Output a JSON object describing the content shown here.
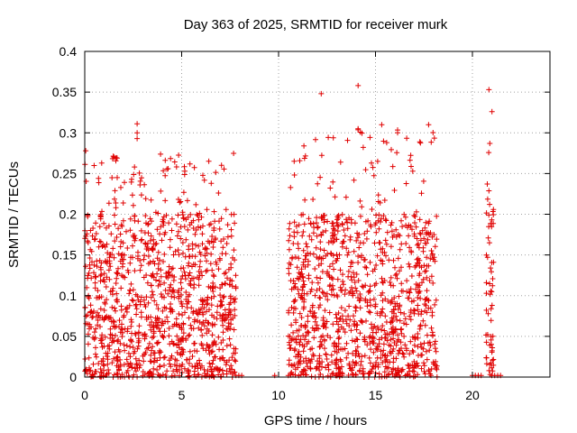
{
  "chart_data": {
    "type": "scatter",
    "title": "Day 363 of 2025, SRMTID for receiver murk",
    "xlabel": "GPS time / hours",
    "ylabel": "SRMTID / TECUs",
    "xlim": [
      0,
      24
    ],
    "ylim": [
      0,
      0.4
    ],
    "xticks": [
      0,
      5,
      10,
      15,
      20
    ],
    "xtick_labels": [
      "0",
      "5",
      "10",
      "15",
      "20"
    ],
    "yticks": [
      0,
      0.05,
      0.1,
      0.15,
      0.2,
      0.25,
      0.3,
      0.35,
      0.4
    ],
    "ytick_labels": [
      "0",
      "0.05",
      "0.1",
      "0.15",
      "0.2",
      "0.25",
      "0.3",
      "0.35",
      "0.4"
    ],
    "grid": true,
    "marker": "+",
    "series_color": "#e00000",
    "series": [
      {
        "name": "SRMTID",
        "clusters": [
          {
            "x_start": 0.0,
            "x_end": 7.8,
            "count": 1150,
            "y_typical_max": 0.2,
            "y_peak": 0.31
          },
          {
            "x_start": 10.5,
            "x_end": 18.2,
            "count": 1100,
            "y_typical_max": 0.2,
            "y_peak": 0.36
          },
          {
            "x_start": 20.7,
            "x_end": 21.1,
            "count": 60,
            "y_typical_max": 0.29,
            "y_peak": 0.353
          }
        ],
        "highlight_points": [
          {
            "x": 0.05,
            "y": 0.278
          },
          {
            "x": 2.7,
            "y": 0.311
          },
          {
            "x": 2.7,
            "y": 0.3
          },
          {
            "x": 2.7,
            "y": 0.293
          },
          {
            "x": 4.3,
            "y": 0.256
          },
          {
            "x": 6.4,
            "y": 0.265
          },
          {
            "x": 12.2,
            "y": 0.348
          },
          {
            "x": 14.1,
            "y": 0.358
          },
          {
            "x": 14.1,
            "y": 0.305
          },
          {
            "x": 20.85,
            "y": 0.353
          },
          {
            "x": 20.9,
            "y": 0.287
          }
        ],
        "zero_points_x": [
          7.8,
          7.95,
          8.1,
          9.8,
          10.5,
          20.0,
          20.15,
          20.3,
          20.45,
          21.0,
          21.15,
          21.3,
          21.45
        ]
      }
    ]
  }
}
